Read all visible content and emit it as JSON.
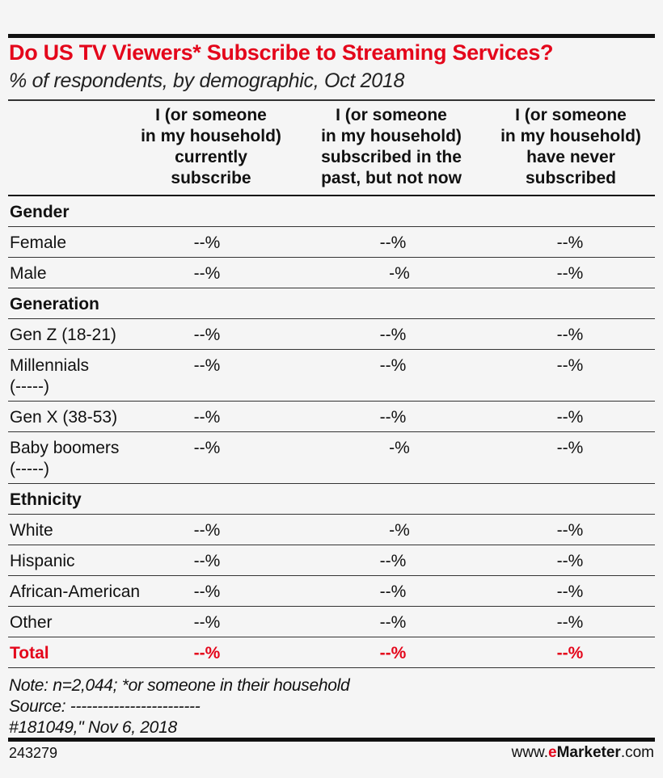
{
  "chart_data": {
    "type": "table",
    "title": "Do US TV Viewers* Subscribe to Streaming Services?",
    "subtitle": "% of respondents, by demographic, Oct 2018",
    "columns": [
      "I (or someone in my household) currently subscribe",
      "I (or someone in my household) subscribed in the past, but not now",
      "I (or someone in my household) have never subscribed"
    ],
    "column_lines": [
      [
        "I (or someone",
        "in my household)",
        "currently",
        "subscribe"
      ],
      [
        "I (or someone",
        "in my household)",
        "subscribed in the",
        "past, but not now"
      ],
      [
        "I (or someone",
        "in my household)",
        "have never",
        "subscribed"
      ]
    ],
    "rows": [
      {
        "label": "Gender",
        "section": true
      },
      {
        "label": "Female",
        "values": [
          "--%",
          "--%",
          "--%"
        ]
      },
      {
        "label": "Male",
        "values": [
          "--%",
          "-%",
          "--%"
        ]
      },
      {
        "label": "Generation",
        "section": true
      },
      {
        "label": "Gen Z (18-21)",
        "values": [
          "--%",
          "--%",
          "--%"
        ]
      },
      {
        "label": "Millennials",
        "label2": "(-----)",
        "values": [
          "--%",
          "--%",
          "--%"
        ]
      },
      {
        "label": "Gen X (38-53)",
        "values": [
          "--%",
          "--%",
          "--%"
        ]
      },
      {
        "label": "Baby boomers",
        "label2": "(-----)",
        "values": [
          "--%",
          "-%",
          "--%"
        ]
      },
      {
        "label": "Ethnicity",
        "section": true
      },
      {
        "label": "White",
        "values": [
          "--%",
          "-%",
          "--%"
        ]
      },
      {
        "label": "Hispanic",
        "values": [
          "--%",
          "--%",
          "--%"
        ]
      },
      {
        "label": "African-American",
        "values": [
          "--%",
          "--%",
          "--%"
        ]
      },
      {
        "label": "Other",
        "values": [
          "--%",
          "--%",
          "--%"
        ]
      },
      {
        "label": "Total",
        "values": [
          "--%",
          "--%",
          "--%"
        ],
        "total": true
      }
    ],
    "notes": [
      "Note: n=2,044; *or someone in their household",
      "Source: ------------------------",
      "#181049,\" Nov 6, 2018"
    ],
    "accent_color": "#e4061b"
  },
  "footer": {
    "id": "243279",
    "brand_prefix": "www.",
    "brand_e": "e",
    "brand_name": "Marketer",
    "brand_suffix": ".com"
  }
}
